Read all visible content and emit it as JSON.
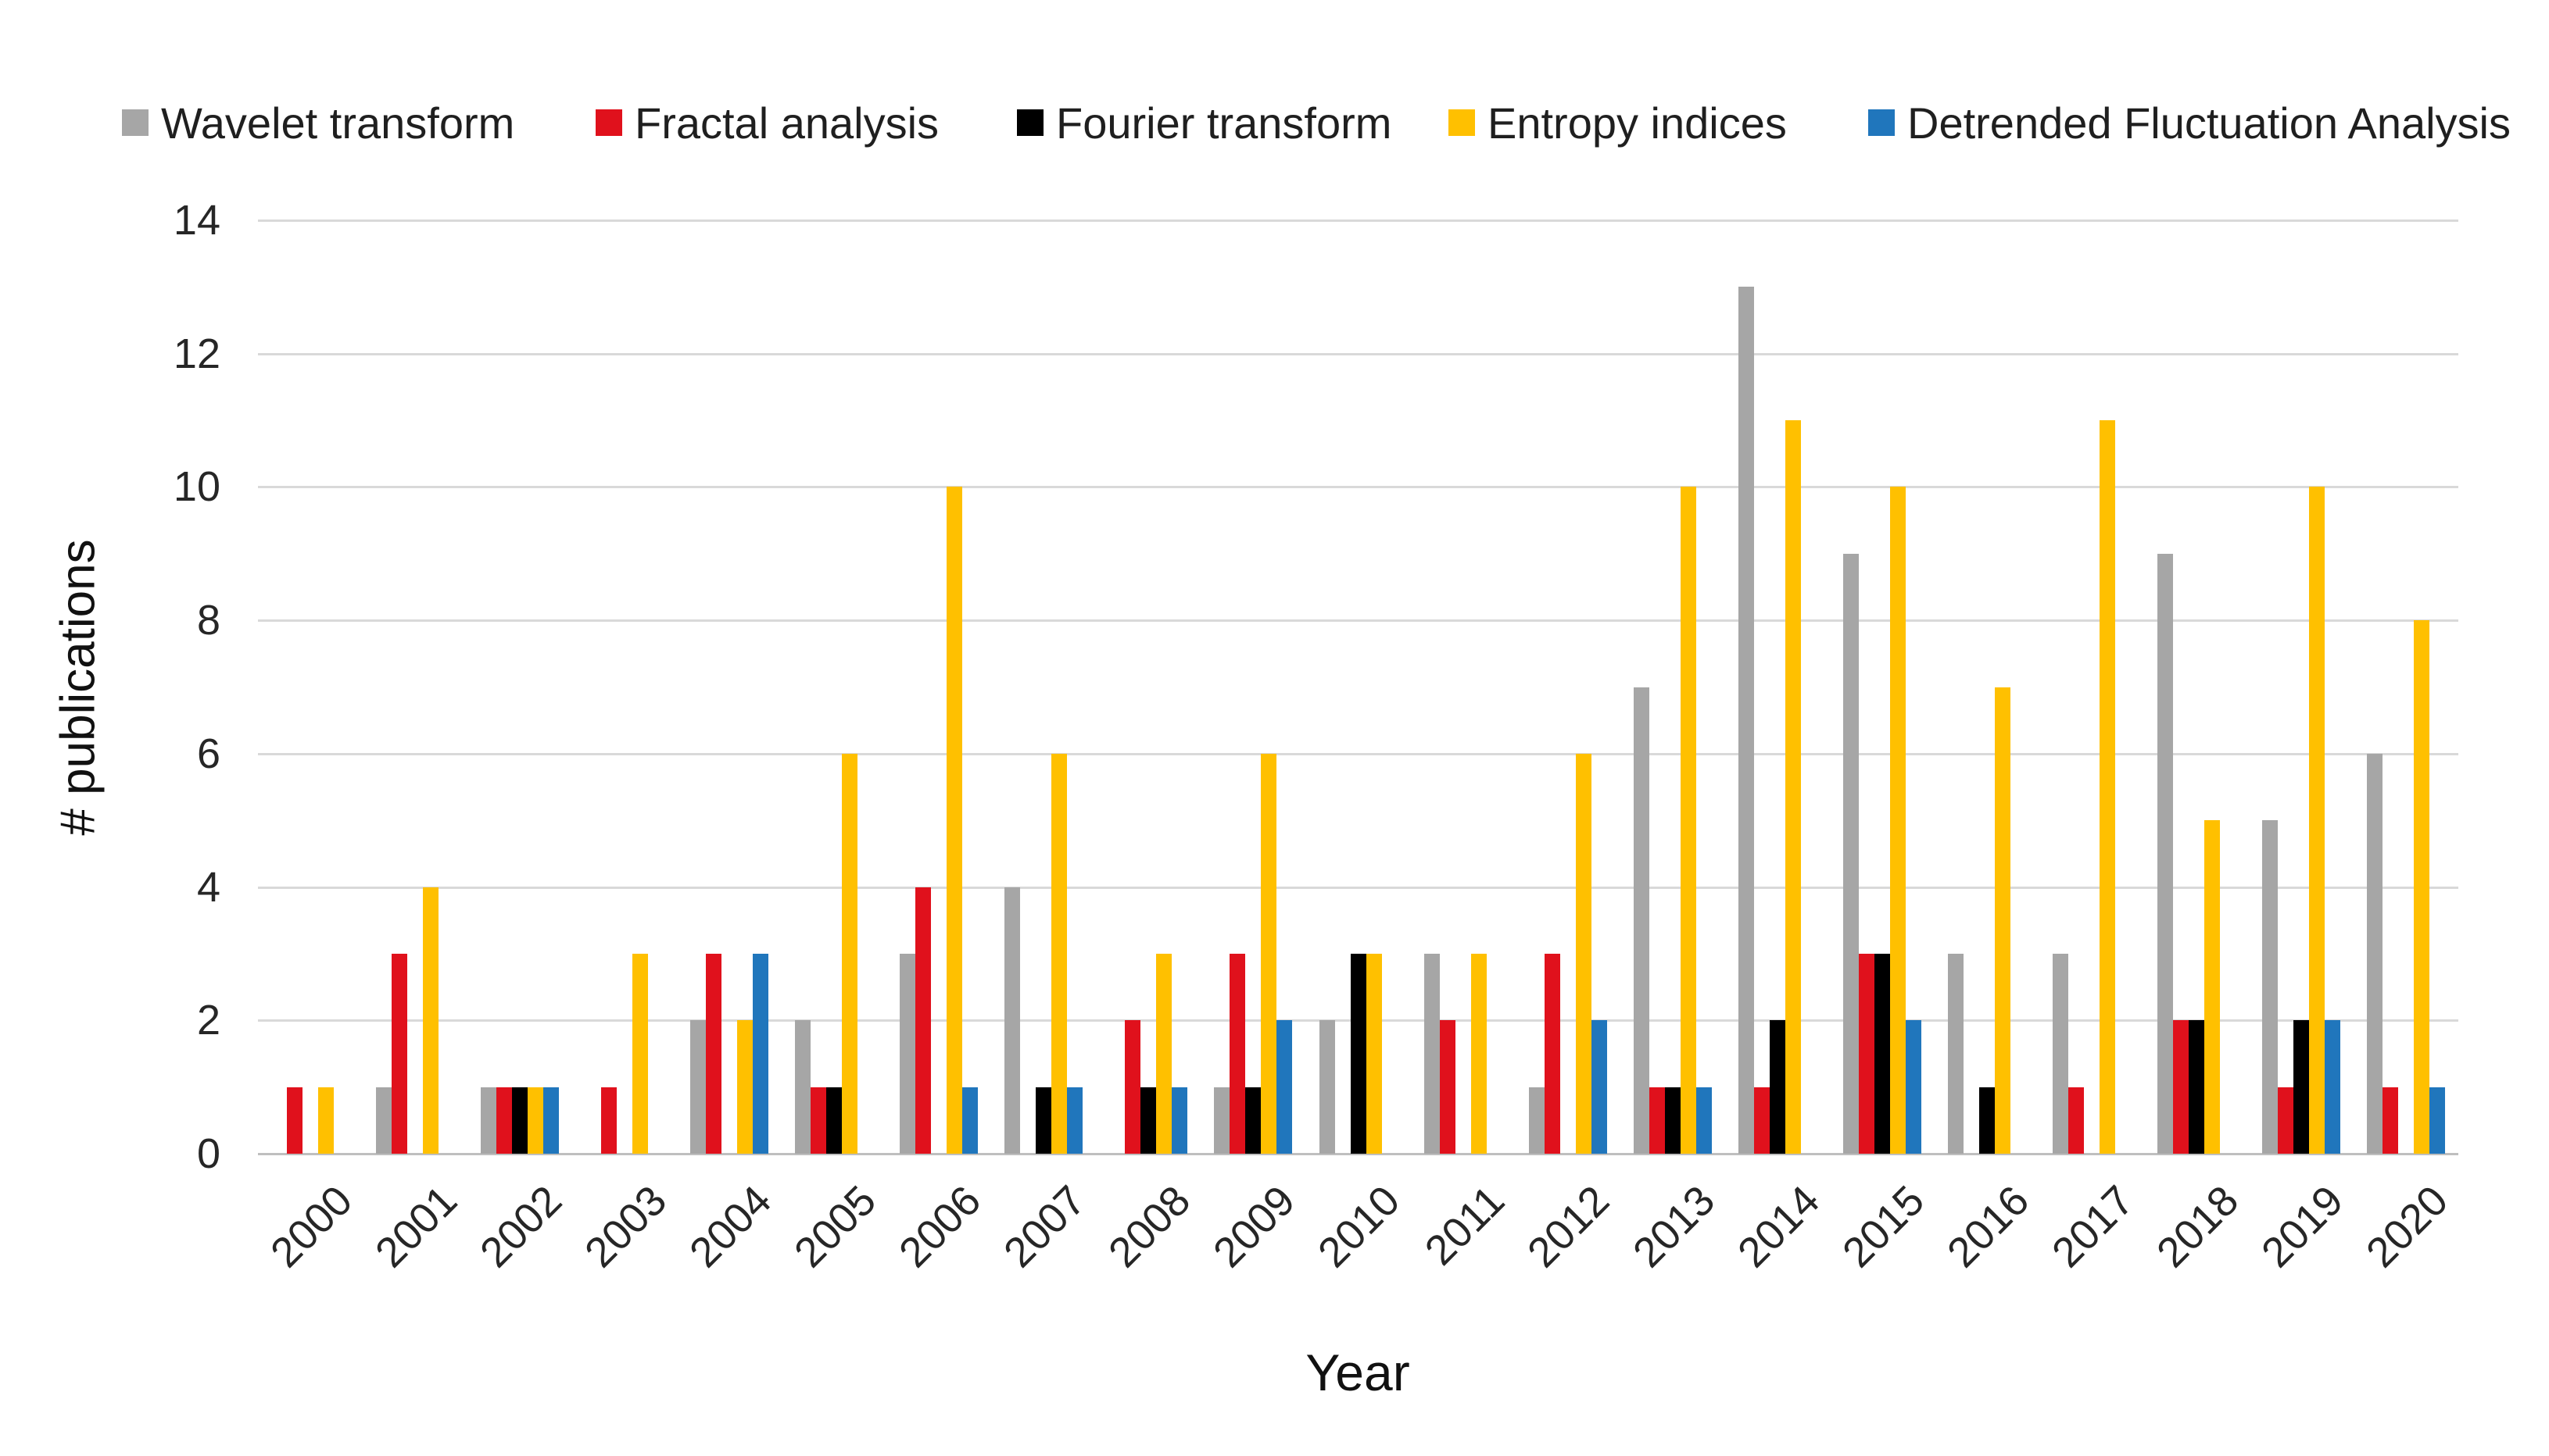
{
  "chart_data": {
    "type": "bar",
    "title": "",
    "xlabel": "Year",
    "ylabel": "# publications",
    "ylim": [
      0,
      14
    ],
    "yticks": [
      0,
      2,
      4,
      6,
      8,
      10,
      12,
      14
    ],
    "grid": "horizontal",
    "legend_position": "top",
    "categories": [
      "2000",
      "2001",
      "2002",
      "2003",
      "2004",
      "2005",
      "2006",
      "2007",
      "2008",
      "2009",
      "2010",
      "2011",
      "2012",
      "2013",
      "2014",
      "2015",
      "2016",
      "2017",
      "2018",
      "2019",
      "2020"
    ],
    "series": [
      {
        "name": "Wavelet transform",
        "color": "#A6A6A6",
        "values": [
          0,
          1,
          1,
          0,
          2,
          2,
          3,
          4,
          0,
          1,
          2,
          3,
          1,
          7,
          13,
          9,
          3,
          3,
          9,
          5,
          6
        ]
      },
      {
        "name": "Fractal analysis",
        "color": "#E0111C",
        "values": [
          1,
          3,
          1,
          1,
          3,
          1,
          4,
          0,
          2,
          3,
          0,
          2,
          3,
          1,
          1,
          3,
          0,
          1,
          2,
          1,
          1
        ]
      },
      {
        "name": "Fourier transform",
        "color": "#000000",
        "values": [
          0,
          0,
          1,
          0,
          0,
          1,
          0,
          1,
          1,
          1,
          3,
          0,
          0,
          1,
          2,
          3,
          1,
          0,
          2,
          2,
          0
        ]
      },
      {
        "name": "Entropy indices",
        "color": "#FFC000",
        "values": [
          1,
          4,
          1,
          3,
          2,
          6,
          10,
          6,
          3,
          6,
          3,
          3,
          6,
          10,
          11,
          10,
          7,
          11,
          5,
          10,
          8
        ]
      },
      {
        "name": "Detrended Fluctuation Analysis",
        "color": "#2076BC",
        "values": [
          0,
          0,
          1,
          0,
          3,
          0,
          1,
          1,
          1,
          2,
          0,
          0,
          2,
          1,
          0,
          2,
          0,
          0,
          0,
          2,
          1
        ]
      }
    ],
    "colors": {
      "gridline": "#D9D9D9",
      "axisline": "#BFBFBF",
      "text": "#262626"
    }
  }
}
